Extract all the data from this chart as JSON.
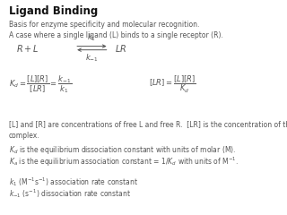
{
  "title": "Ligand Binding",
  "subtitle": "Basis for enzyme specificity and molecular recognition.",
  "line2": "A case where a single ligand (L) binds to a single receptor (R).",
  "note1": "[L] and [R] are concentrations of free L and free R.  [LR] is the concentration of the\ncomplex.",
  "note2a": "$K_d$ is the equilibrium dissociation constant with units of molar (M).",
  "note2b": "$K_a$ is the equilibrium association constant = 1/$K_d$ with units of M$^{-1}$.",
  "note3a": "$k_1$ (M$^{-1}$s$^{-1}$) association rate constant",
  "note3b": "$k_{-1}$ (s$^{-1}$) dissociation rate constant",
  "bg_color": "#ffffff",
  "text_color": "#555555",
  "title_color": "#111111",
  "title_fontsize": 8.5,
  "body_fontsize": 5.5,
  "math_fontsize": 7.0,
  "small_math_fontsize": 6.0
}
